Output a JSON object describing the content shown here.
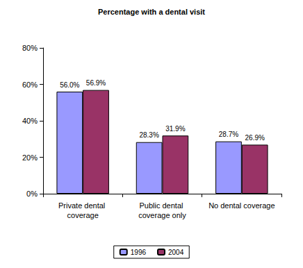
{
  "chart_data": {
    "type": "bar",
    "title": "Percentage with a dental visit",
    "categories": [
      "Private dental coverage",
      "Public dental coverage only",
      "No dental coverage"
    ],
    "series": [
      {
        "name": "1996",
        "color": "#9999ff",
        "values": [
          56.0,
          28.3,
          28.7
        ],
        "value_labels": [
          "56.0%",
          "28.3%",
          "28.7%"
        ]
      },
      {
        "name": "2004",
        "color": "#993366",
        "values": [
          56.9,
          31.9,
          26.9
        ],
        "value_labels": [
          "56.9%",
          "31.9%",
          "26.9%"
        ]
      }
    ],
    "ylim": [
      0,
      80
    ],
    "yticks": [
      {
        "value": 0,
        "label": "0%"
      },
      {
        "value": 20,
        "label": "20%"
      },
      {
        "value": 40,
        "label": "40%"
      },
      {
        "value": 60,
        "label": "60%"
      },
      {
        "value": 80,
        "label": "80%"
      }
    ],
    "grid": false,
    "legend": "bottom",
    "data_labels": true
  }
}
